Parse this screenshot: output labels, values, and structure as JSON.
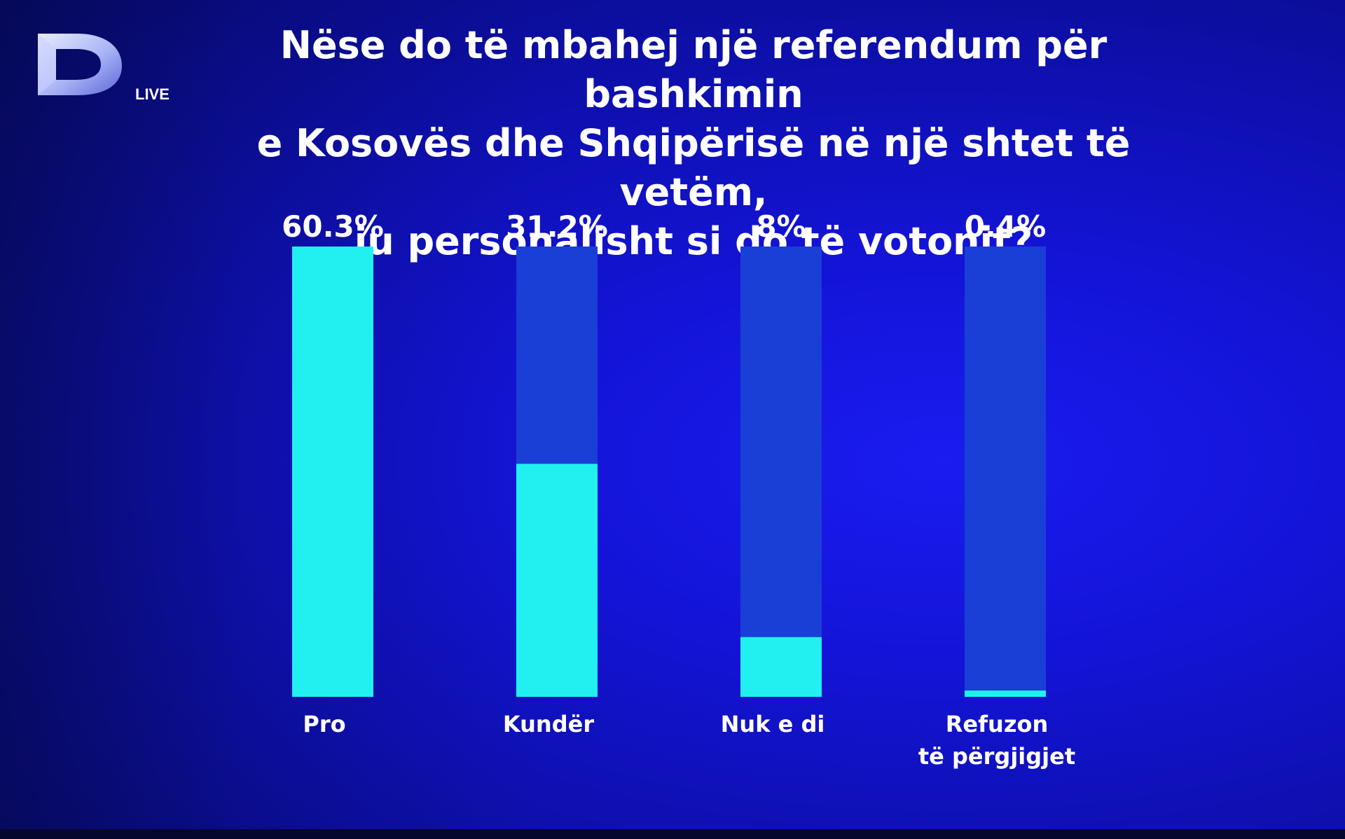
{
  "logo": {
    "letter": "D",
    "text": "LIVE"
  },
  "colors": {
    "background": "#1414d8",
    "bar_fill": "#22f0f0",
    "bar_track": "#1a3fd6"
  },
  "chart_data": {
    "type": "bar",
    "title_lines": [
      "Nëse do të mbahej një referendum për bashkimin",
      "e Kosovës dhe Shqipërisë në një shtet të vetëm,",
      "ju personalisht si do të votonit?"
    ],
    "categories": [
      [
        "Pro"
      ],
      [
        "Kundër"
      ],
      [
        "Nuk e di"
      ],
      [
        "Refuzon",
        "të përgjigjet"
      ]
    ],
    "values": [
      60.3,
      31.2,
      8,
      0.4
    ],
    "value_labels": [
      "60.3%",
      "31.2%",
      "8%",
      "0.4%"
    ],
    "ylim": [
      0,
      60.3
    ],
    "grid": false,
    "legend": "none"
  }
}
